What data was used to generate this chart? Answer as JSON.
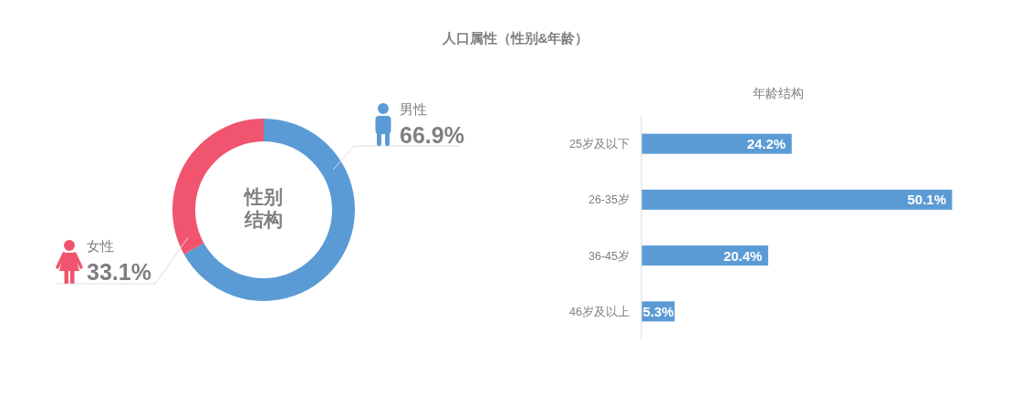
{
  "chart_data": [
    {
      "type": "other",
      "title": "人口属性（性别&年龄）"
    },
    {
      "type": "donut",
      "title": "性别结构",
      "categories": [
        "男性",
        "女性"
      ],
      "values": [
        66.9,
        33.1
      ],
      "colors": [
        "#5b9bd5",
        "#f0546e"
      ],
      "value_labels": [
        "66.9%",
        "33.1%"
      ],
      "legend": "top left"
    },
    {
      "type": "bar",
      "orientation": "horizontal",
      "title": "年龄结构",
      "categories": [
        "25岁及以下",
        "26-35岁",
        "36-45岁",
        "46岁及以上"
      ],
      "values": [
        24.2,
        50.1,
        20.4,
        5.3
      ],
      "color": "#5b9bd5",
      "value_labels": [
        "24.2%",
        "50.1%",
        "20.4%",
        "5.3%"
      ]
    }
  ]
}
